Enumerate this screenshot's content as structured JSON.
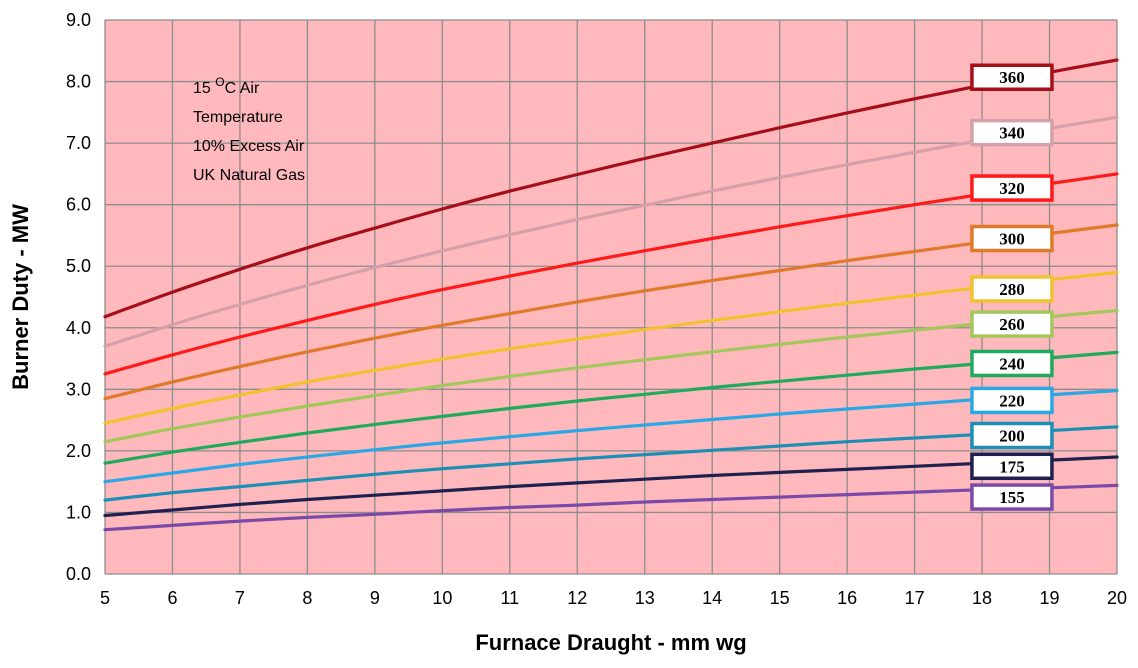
{
  "chart_data": {
    "type": "line",
    "title": "",
    "xlabel": "Furnace Draught - mm wg",
    "ylabel": "Burner Duty - MW",
    "xlim": [
      5,
      20
    ],
    "ylim": [
      0,
      9
    ],
    "x_ticks": [
      "5",
      "6",
      "7",
      "8",
      "9",
      "10",
      "11",
      "12",
      "13",
      "14",
      "15",
      "16",
      "17",
      "18",
      "19",
      "20"
    ],
    "y_ticks": [
      "0.0",
      "1.0",
      "2.0",
      "3.0",
      "4.0",
      "5.0",
      "6.0",
      "7.0",
      "8.0",
      "9.0"
    ],
    "grid": true,
    "plot_background": "#ffb9bd",
    "grid_color": "#8c8c8c",
    "annotation": {
      "line1_prefix": "15 ",
      "line1_sup": "O",
      "line1_suffix": "C Air",
      "line2": "Temperature",
      "line3": "10% Excess Air",
      "line4": "UK Natural Gas"
    },
    "x": [
      5,
      6,
      7,
      8,
      9,
      10,
      11,
      12,
      13,
      14,
      15,
      16,
      17,
      18,
      19,
      20
    ],
    "series": [
      {
        "name": "360",
        "color": "#a50f1a",
        "label_at_y": 8.07,
        "values": [
          4.18,
          4.58,
          4.95,
          5.3,
          5.62,
          5.93,
          6.22,
          6.49,
          6.75,
          7.0,
          7.25,
          7.49,
          7.72,
          7.94,
          8.15,
          8.35
        ]
      },
      {
        "name": "340",
        "color": "#d6a0aa",
        "label_at_y": 7.17,
        "values": [
          3.7,
          4.05,
          4.38,
          4.69,
          4.98,
          5.25,
          5.51,
          5.76,
          5.99,
          6.22,
          6.44,
          6.65,
          6.85,
          7.05,
          7.24,
          7.42
        ]
      },
      {
        "name": "320",
        "color": "#ff1a1a",
        "label_at_y": 6.27,
        "values": [
          3.25,
          3.56,
          3.85,
          4.12,
          4.38,
          4.62,
          4.84,
          5.05,
          5.25,
          5.45,
          5.64,
          5.82,
          6.0,
          6.17,
          6.34,
          6.5
        ]
      },
      {
        "name": "300",
        "color": "#e07a2a",
        "label_at_y": 5.45,
        "values": [
          2.85,
          3.12,
          3.37,
          3.61,
          3.83,
          4.04,
          4.23,
          4.42,
          4.6,
          4.77,
          4.93,
          5.09,
          5.24,
          5.39,
          5.53,
          5.67
        ]
      },
      {
        "name": "280",
        "color": "#f2c12e",
        "label_at_y": 4.63,
        "values": [
          2.45,
          2.69,
          2.91,
          3.12,
          3.31,
          3.49,
          3.66,
          3.82,
          3.97,
          4.12,
          4.26,
          4.4,
          4.53,
          4.66,
          4.78,
          4.9
        ]
      },
      {
        "name": "260",
        "color": "#a3c75a",
        "label_at_y": 4.06,
        "values": [
          2.15,
          2.36,
          2.55,
          2.73,
          2.9,
          3.06,
          3.21,
          3.35,
          3.48,
          3.61,
          3.73,
          3.85,
          3.96,
          4.07,
          4.18,
          4.28
        ]
      },
      {
        "name": "240",
        "color": "#1faa5c",
        "label_at_y": 3.42,
        "values": [
          1.8,
          1.98,
          2.14,
          2.29,
          2.43,
          2.56,
          2.69,
          2.81,
          2.92,
          3.03,
          3.13,
          3.23,
          3.33,
          3.42,
          3.51,
          3.6
        ]
      },
      {
        "name": "220",
        "color": "#2aa8e6",
        "label_at_y": 2.82,
        "values": [
          1.5,
          1.64,
          1.78,
          1.9,
          2.02,
          2.13,
          2.23,
          2.33,
          2.42,
          2.51,
          2.6,
          2.68,
          2.76,
          2.84,
          2.91,
          2.98
        ]
      },
      {
        "name": "200",
        "color": "#1b8fb5",
        "label_at_y": 2.25,
        "values": [
          1.2,
          1.32,
          1.42,
          1.52,
          1.62,
          1.71,
          1.79,
          1.87,
          1.94,
          2.01,
          2.08,
          2.15,
          2.21,
          2.27,
          2.33,
          2.39
        ]
      },
      {
        "name": "175",
        "color": "#1f2050",
        "label_at_y": 1.75,
        "values": [
          0.95,
          1.04,
          1.13,
          1.21,
          1.28,
          1.35,
          1.42,
          1.48,
          1.54,
          1.6,
          1.65,
          1.7,
          1.75,
          1.8,
          1.85,
          1.9
        ]
      },
      {
        "name": "155",
        "color": "#7b4aa8",
        "label_at_y": 1.25,
        "values": [
          0.72,
          0.79,
          0.86,
          0.92,
          0.97,
          1.03,
          1.08,
          1.12,
          1.17,
          1.21,
          1.25,
          1.29,
          1.33,
          1.37,
          1.4,
          1.44
        ]
      }
    ]
  }
}
